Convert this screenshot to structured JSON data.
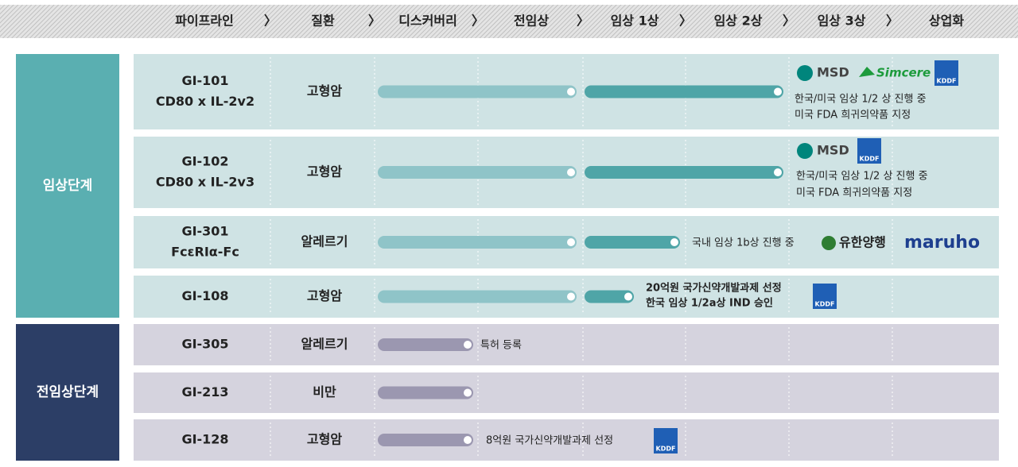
{
  "header": {
    "steps": [
      "파이프라인",
      "질환",
      "디스커버리",
      "전임상",
      "임상 1상",
      "임상 2상",
      "임상 3상",
      "상업화"
    ],
    "separator": "〉"
  },
  "groups": [
    {
      "label": "임상단계"
    },
    {
      "label": "전임상단계"
    }
  ],
  "rows": [
    {
      "name": [
        "GI-101",
        "CD80 x IL-2v2"
      ],
      "disease": "고형암",
      "notes": [
        "한국/미국 임상 1/2 상 진행 중",
        "미국 FDA 희귀의약품 지정"
      ],
      "partners": [
        "MSD",
        "Simcere",
        "KDDF"
      ]
    },
    {
      "name": [
        "GI-102",
        "CD80 x IL-2v3"
      ],
      "disease": "고형암",
      "notes": [
        "한국/미국 임상 1/2 상 진행 중",
        "미국 FDA 희귀의약품 지정"
      ],
      "partners": [
        "MSD",
        "KDDF"
      ]
    },
    {
      "name": [
        "GI-301",
        "FcεRIα-Fc"
      ],
      "disease": "알레르기",
      "notes": [
        "국내 임상 1b상 진행 중"
      ],
      "partners": [
        "유한양행",
        "maruho"
      ]
    },
    {
      "name": [
        "GI-108"
      ],
      "disease": "고형암",
      "notes": [
        "20억원 국가신약개발과제 선정",
        "한국 임상 1/2a상 IND 승인"
      ],
      "partners": [
        "KDDF"
      ]
    },
    {
      "name": [
        "GI-305"
      ],
      "disease": "알레르기",
      "notes": [
        "특허 등록"
      ],
      "partners": []
    },
    {
      "name": [
        "GI-213"
      ],
      "disease": "비만",
      "notes": [],
      "partners": []
    },
    {
      "name": [
        "GI-128"
      ],
      "disease": "고형암",
      "notes": [
        "8억원 국가신약개발과제 선정"
      ],
      "partners": [
        "KDDF"
      ]
    }
  ]
}
